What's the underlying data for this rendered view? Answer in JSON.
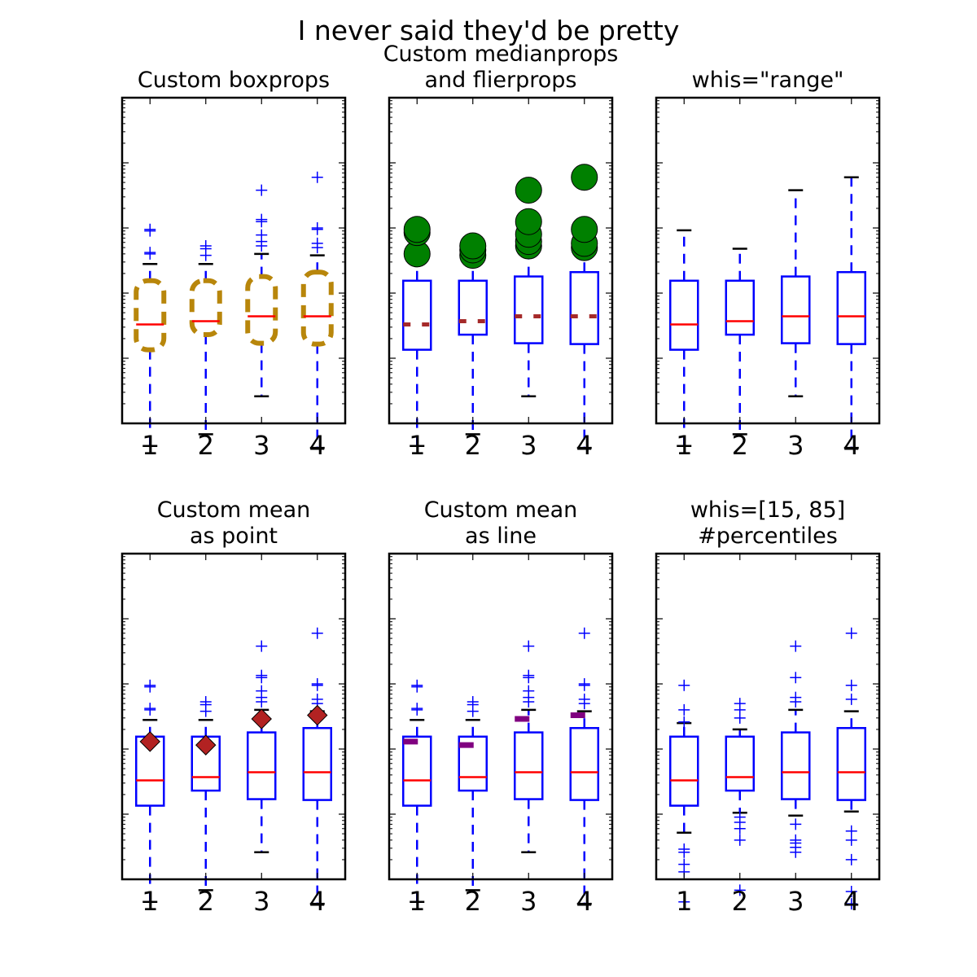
{
  "figure": {
    "suptitle": "I never said they'd be pretty"
  },
  "chart_data": [
    {
      "type": "boxplot",
      "title": [
        "Custom boxprops"
      ],
      "yscale": "log",
      "ylim_decades": [
        -2,
        3
      ],
      "categories": [
        "1",
        "2",
        "3",
        "4"
      ],
      "boxes": [
        {
          "q1": 0.135,
          "median": 0.33,
          "q3": 1.55,
          "whislo": 0.0045,
          "whishi": 2.8,
          "fliers": [
            4.0,
            4.2,
            9.0,
            9.5
          ]
        },
        {
          "q1": 0.23,
          "median": 0.37,
          "q3": 1.55,
          "whislo": 0.0068,
          "whishi": 2.8,
          "fliers": [
            3.8,
            4.8,
            5.3
          ]
        },
        {
          "q1": 0.17,
          "median": 0.44,
          "q3": 1.8,
          "whislo": 0.026,
          "whishi": 4.0,
          "fliers": [
            5.3,
            6.2,
            7.8,
            12.5,
            13.5,
            38
          ]
        },
        {
          "q1": 0.165,
          "median": 0.44,
          "q3": 2.1,
          "whislo": 0.0042,
          "whishi": 3.8,
          "fliers": [
            5.0,
            5.8,
            9.5,
            10.0,
            60
          ]
        }
      ],
      "style": {
        "box_color": "#b8860b",
        "box_dash": true,
        "box_shape": "rounded",
        "median_color": "#ff0000",
        "median_dash": false,
        "flier_marker": "plus"
      }
    },
    {
      "type": "boxplot",
      "title": [
        "Custom medianprops",
        "and flierprops"
      ],
      "yscale": "log",
      "ylim_decades": [
        -2,
        3
      ],
      "categories": [
        "1",
        "2",
        "3",
        "4"
      ],
      "boxes": [
        {
          "q1": 0.135,
          "median": 0.33,
          "q3": 1.55,
          "whislo": 0.0045,
          "whishi": 2.8,
          "fliers": [
            4.0,
            8.5,
            9.5
          ]
        },
        {
          "q1": 0.23,
          "median": 0.37,
          "q3": 1.55,
          "whislo": 0.0068,
          "whishi": 2.8,
          "fliers": [
            3.8,
            4.6,
            5.3
          ]
        },
        {
          "q1": 0.17,
          "median": 0.44,
          "q3": 1.8,
          "whislo": 0.026,
          "whishi": 4.0,
          "fliers": [
            5.3,
            6.2,
            8.0,
            12.5,
            38
          ]
        },
        {
          "q1": 0.165,
          "median": 0.44,
          "q3": 2.1,
          "whislo": 0.0042,
          "whishi": 3.8,
          "fliers": [
            5.0,
            5.8,
            9.5,
            60
          ]
        }
      ],
      "style": {
        "box_color": "#0000ff",
        "box_dash": false,
        "median_color": "#a52a2a",
        "median_dash": true,
        "flier_marker": "circle",
        "flier_color": "#008000"
      }
    },
    {
      "type": "boxplot",
      "title": [
        "whis=\"range\""
      ],
      "yscale": "log",
      "ylim_decades": [
        -2,
        3
      ],
      "categories": [
        "1",
        "2",
        "3",
        "4"
      ],
      "boxes": [
        {
          "q1": 0.135,
          "median": 0.33,
          "q3": 1.55,
          "whislo": 0.0045,
          "whishi": 9.2,
          "fliers": []
        },
        {
          "q1": 0.23,
          "median": 0.37,
          "q3": 1.55,
          "whislo": 0.0068,
          "whishi": 4.8,
          "fliers": []
        },
        {
          "q1": 0.17,
          "median": 0.44,
          "q3": 1.8,
          "whislo": 0.026,
          "whishi": 38,
          "fliers": []
        },
        {
          "q1": 0.165,
          "median": 0.44,
          "q3": 2.1,
          "whislo": 0.0042,
          "whishi": 60,
          "fliers": []
        }
      ],
      "style": {
        "box_color": "#0000ff",
        "box_dash": false,
        "median_color": "#ff0000",
        "median_dash": false,
        "flier_marker": "plus"
      }
    },
    {
      "type": "boxplot",
      "title": [
        "Custom mean",
        "as point"
      ],
      "yscale": "log",
      "ylim_decades": [
        -2,
        3
      ],
      "categories": [
        "1",
        "2",
        "3",
        "4"
      ],
      "boxes": [
        {
          "q1": 0.135,
          "median": 0.33,
          "q3": 1.55,
          "whislo": 0.0045,
          "whishi": 2.8,
          "fliers": [
            4.0,
            4.2,
            9.0,
            9.5
          ],
          "mean": 1.3
        },
        {
          "q1": 0.23,
          "median": 0.37,
          "q3": 1.55,
          "whislo": 0.0068,
          "whishi": 2.8,
          "fliers": [
            3.8,
            4.8,
            5.3
          ],
          "mean": 1.15
        },
        {
          "q1": 0.17,
          "median": 0.44,
          "q3": 1.8,
          "whislo": 0.026,
          "whishi": 4.0,
          "fliers": [
            5.3,
            6.2,
            7.8,
            12.5,
            13.5,
            38
          ],
          "mean": 2.9
        },
        {
          "q1": 0.165,
          "median": 0.44,
          "q3": 2.1,
          "whislo": 0.0042,
          "whishi": 3.8,
          "fliers": [
            5.0,
            5.8,
            9.5,
            10.0,
            60
          ],
          "mean": 3.3
        }
      ],
      "style": {
        "box_color": "#0000ff",
        "box_dash": false,
        "median_color": "#ff0000",
        "median_dash": false,
        "flier_marker": "plus",
        "mean_style": "diamond",
        "mean_color": "#b22222"
      }
    },
    {
      "type": "boxplot",
      "title": [
        "Custom mean",
        "as line"
      ],
      "yscale": "log",
      "ylim_decades": [
        -2,
        3
      ],
      "categories": [
        "1",
        "2",
        "3",
        "4"
      ],
      "boxes": [
        {
          "q1": 0.135,
          "median": 0.33,
          "q3": 1.55,
          "whislo": 0.0045,
          "whishi": 2.8,
          "fliers": [
            4.0,
            4.2,
            9.0,
            9.5
          ],
          "mean": 1.3
        },
        {
          "q1": 0.23,
          "median": 0.37,
          "q3": 1.55,
          "whislo": 0.0068,
          "whishi": 2.8,
          "fliers": [
            3.8,
            4.8,
            5.3
          ],
          "mean": 1.15
        },
        {
          "q1": 0.17,
          "median": 0.44,
          "q3": 1.8,
          "whislo": 0.026,
          "whishi": 4.0,
          "fliers": [
            5.3,
            6.2,
            7.8,
            12.5,
            13.5,
            38
          ],
          "mean": 2.9
        },
        {
          "q1": 0.165,
          "median": 0.44,
          "q3": 2.1,
          "whislo": 0.0042,
          "whishi": 3.8,
          "fliers": [
            5.0,
            5.8,
            9.5,
            10.0,
            60
          ],
          "mean": 3.3
        }
      ],
      "style": {
        "box_color": "#0000ff",
        "box_dash": false,
        "median_color": "#ff0000",
        "median_dash": false,
        "flier_marker": "plus",
        "mean_style": "line",
        "mean_color": "#800080"
      }
    },
    {
      "type": "boxplot",
      "title": [
        "whis=[15, 85]",
        "#percentiles"
      ],
      "yscale": "log",
      "ylim_decades": [
        -2,
        3
      ],
      "categories": [
        "1",
        "2",
        "3",
        "4"
      ],
      "boxes": [
        {
          "q1": 0.135,
          "median": 0.33,
          "q3": 1.55,
          "whislo": 0.052,
          "whishi": 2.5,
          "fliers": [
            0.0045,
            0.013,
            0.017,
            0.026,
            0.029,
            2.6,
            4.0,
            9.5
          ]
        },
        {
          "q1": 0.23,
          "median": 0.37,
          "q3": 1.55,
          "whislo": 0.105,
          "whishi": 2.0,
          "fliers": [
            0.0068,
            0.04,
            0.06,
            0.075,
            0.09,
            3.0,
            4.0,
            5.0
          ]
        },
        {
          "q1": 0.17,
          "median": 0.44,
          "q3": 1.8,
          "whislo": 0.095,
          "whishi": 4.0,
          "fliers": [
            0.026,
            0.031,
            0.036,
            0.04,
            0.07,
            5.3,
            6.2,
            12.5,
            38
          ]
        },
        {
          "q1": 0.165,
          "median": 0.44,
          "q3": 2.1,
          "whislo": 0.11,
          "whishi": 3.8,
          "fliers": [
            0.0042,
            0.0065,
            0.02,
            0.04,
            0.055,
            5.8,
            9.5,
            60
          ]
        }
      ],
      "style": {
        "box_color": "#0000ff",
        "box_dash": false,
        "median_color": "#ff0000",
        "median_dash": false,
        "flier_marker": "plus"
      }
    }
  ]
}
